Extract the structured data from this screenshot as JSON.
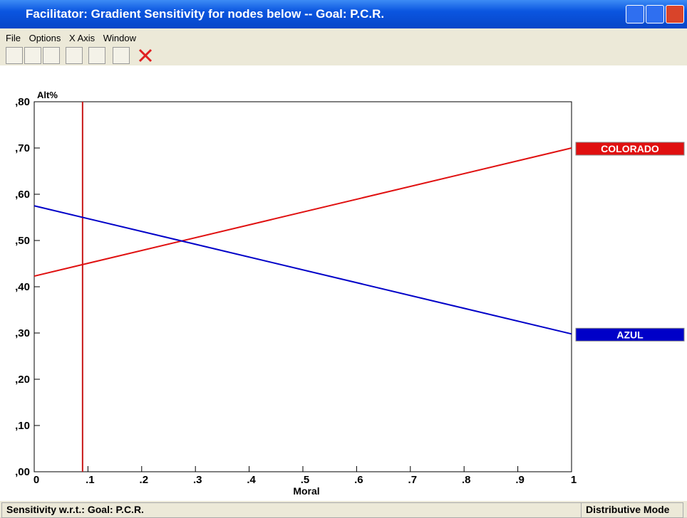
{
  "window": {
    "title": "Facilitator: Gradient Sensitivity for nodes below -- Goal: P.C.R.",
    "menu": [
      "File",
      "Options",
      "X Axis",
      "Window"
    ],
    "status_left": "Sensitivity w.r.t.: Goal: P.C.R.",
    "status_right": "Distributive Mode"
  },
  "chart_data": {
    "type": "line",
    "ylabel": "Alt%",
    "xlabel": "Moral",
    "x": [
      0,
      1
    ],
    "series": [
      {
        "name": "COLORADO",
        "color": "#e01010",
        "values": [
          0.423,
          0.7
        ]
      },
      {
        "name": "AZUL",
        "color": "#0000c8",
        "values": [
          0.575,
          0.298
        ]
      }
    ],
    "current_x": 0.09,
    "current_color": "#c81818",
    "xlim": [
      0,
      1
    ],
    "xticks": [
      {
        "value": 0,
        "label": "0"
      },
      {
        "value": 0.1,
        "label": ".1"
      },
      {
        "value": 0.2,
        "label": ".2"
      },
      {
        "value": 0.3,
        "label": ".3"
      },
      {
        "value": 0.4,
        "label": ".4"
      },
      {
        "value": 0.5,
        "label": ".5"
      },
      {
        "value": 0.6,
        "label": ".6"
      },
      {
        "value": 0.7,
        "label": ".7"
      },
      {
        "value": 0.8,
        "label": ".8"
      },
      {
        "value": 0.9,
        "label": ".9"
      },
      {
        "value": 1,
        "label": "1"
      }
    ],
    "ylim": [
      0,
      0.8
    ],
    "yticks": [
      {
        "value": 0,
        "label": ",00"
      },
      {
        "value": 0.1,
        "label": ",10"
      },
      {
        "value": 0.2,
        "label": ",20"
      },
      {
        "value": 0.3,
        "label": ",30"
      },
      {
        "value": 0.4,
        "label": ",40"
      },
      {
        "value": 0.5,
        "label": ",50"
      },
      {
        "value": 0.6,
        "label": ",60"
      },
      {
        "value": 0.7,
        "label": ",70"
      },
      {
        "value": 0.8,
        "label": ",80"
      }
    ]
  }
}
